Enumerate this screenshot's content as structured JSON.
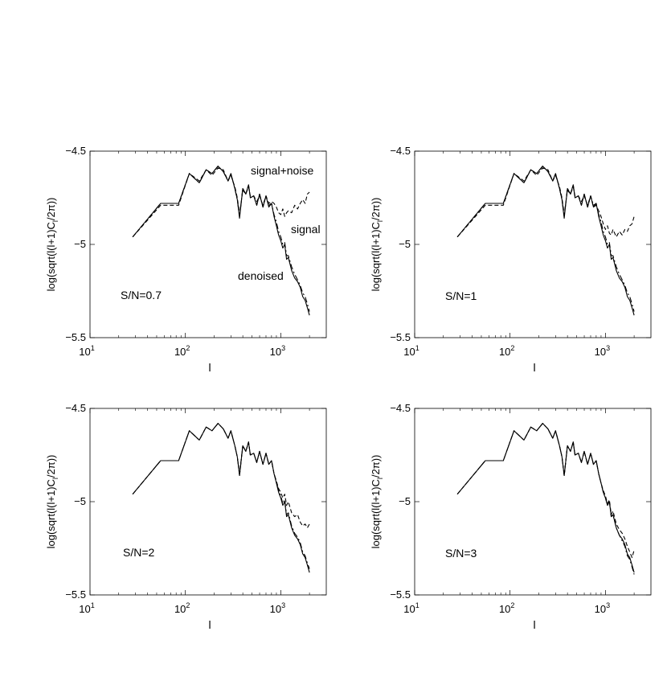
{
  "figure": {
    "layout": "2x2 grid of log-x line plots",
    "line_styles": {
      "signal": "solid",
      "signal+noise": "dashed",
      "denoised": "dash-dot"
    },
    "color": "#000000"
  },
  "chart_data": [
    {
      "type": "line",
      "panel": "top-left",
      "annotation": "S/N=0.7",
      "curve_labels": [
        "signal+noise",
        "signal",
        "denoised"
      ],
      "xlabel": "l",
      "ylabel": "log(sqrt(l(l+1)C_l/2π))",
      "xscale": "log",
      "xlim": [
        10,
        3000
      ],
      "ylim": [
        -5.5,
        -4.5
      ],
      "xticks": [
        10,
        100,
        1000
      ],
      "xtick_labels": [
        "10^1",
        "10^2",
        "10^3"
      ],
      "yticks": [
        -5.5,
        -5,
        -4.5
      ],
      "ytick_labels": [
        "-5.5",
        "-5",
        "-4.5"
      ],
      "grid": false,
      "x": [
        28,
        55,
        85,
        110,
        140,
        165,
        190,
        220,
        250,
        280,
        300,
        330,
        350,
        370,
        400,
        430,
        460,
        480,
        520,
        560,
        600,
        650,
        700,
        750,
        800,
        850,
        900,
        950,
        1000,
        1050,
        1100,
        1150,
        1200,
        1300,
        1400,
        1500,
        1600,
        1700,
        1800,
        1900,
        2000
      ],
      "series": [
        {
          "name": "signal",
          "values": [
            -4.96,
            -4.78,
            -4.78,
            -4.62,
            -4.67,
            -4.6,
            -4.62,
            -4.58,
            -4.61,
            -4.66,
            -4.62,
            -4.7,
            -4.76,
            -4.86,
            -4.7,
            -4.73,
            -4.68,
            -4.75,
            -4.74,
            -4.79,
            -4.73,
            -4.8,
            -4.74,
            -4.8,
            -4.78,
            -4.85,
            -4.9,
            -4.95,
            -4.98,
            -5.02,
            -5.0,
            -5.08,
            -5.07,
            -5.14,
            -5.18,
            -5.2,
            -5.23,
            -5.28,
            -5.3,
            -5.34,
            -5.38
          ]
        },
        {
          "name": "signal+noise",
          "values": [
            -4.96,
            -4.79,
            -4.79,
            -4.62,
            -4.66,
            -4.6,
            -4.63,
            -4.59,
            -4.6,
            -4.66,
            -4.63,
            -4.69,
            -4.75,
            -4.84,
            -4.71,
            -4.73,
            -4.69,
            -4.74,
            -4.74,
            -4.77,
            -4.74,
            -4.79,
            -4.74,
            -4.78,
            -4.77,
            -4.78,
            -4.8,
            -4.83,
            -4.84,
            -4.81,
            -4.85,
            -4.83,
            -4.82,
            -4.83,
            -4.79,
            -4.81,
            -4.78,
            -4.76,
            -4.78,
            -4.73,
            -4.72
          ]
        },
        {
          "name": "denoised",
          "values": [
            -4.96,
            -4.78,
            -4.78,
            -4.62,
            -4.67,
            -4.6,
            -4.62,
            -4.58,
            -4.61,
            -4.66,
            -4.62,
            -4.7,
            -4.76,
            -4.85,
            -4.7,
            -4.73,
            -4.68,
            -4.75,
            -4.74,
            -4.79,
            -4.73,
            -4.8,
            -4.74,
            -4.79,
            -4.78,
            -4.84,
            -4.88,
            -4.93,
            -4.96,
            -5.0,
            -4.99,
            -5.06,
            -5.06,
            -5.12,
            -5.16,
            -5.19,
            -5.22,
            -5.26,
            -5.28,
            -5.32,
            -5.36
          ]
        }
      ]
    },
    {
      "type": "line",
      "panel": "top-right",
      "annotation": "S/N=1",
      "curve_labels": [],
      "xlabel": "l",
      "ylabel": "log(sqrt(l(l+1)C_l/2π))",
      "xscale": "log",
      "xlim": [
        10,
        3000
      ],
      "ylim": [
        -5.5,
        -4.5
      ],
      "xticks": [
        10,
        100,
        1000
      ],
      "xtick_labels": [
        "10^1",
        "10^2",
        "10^3"
      ],
      "yticks": [
        -5.5,
        -5,
        -4.5
      ],
      "ytick_labels": [
        "-5.5",
        "-5",
        "-4.5"
      ],
      "grid": false,
      "x": [
        28,
        55,
        85,
        110,
        140,
        165,
        190,
        220,
        250,
        280,
        300,
        330,
        350,
        370,
        400,
        430,
        460,
        480,
        520,
        560,
        600,
        650,
        700,
        750,
        800,
        850,
        900,
        950,
        1000,
        1050,
        1100,
        1150,
        1200,
        1300,
        1400,
        1500,
        1600,
        1700,
        1800,
        1900,
        2000
      ],
      "series": [
        {
          "name": "signal",
          "values": [
            -4.96,
            -4.78,
            -4.78,
            -4.62,
            -4.67,
            -4.6,
            -4.62,
            -4.58,
            -4.61,
            -4.66,
            -4.62,
            -4.7,
            -4.76,
            -4.86,
            -4.7,
            -4.73,
            -4.68,
            -4.75,
            -4.74,
            -4.79,
            -4.73,
            -4.8,
            -4.74,
            -4.8,
            -4.78,
            -4.85,
            -4.9,
            -4.95,
            -4.98,
            -5.02,
            -5.0,
            -5.08,
            -5.07,
            -5.14,
            -5.18,
            -5.2,
            -5.23,
            -5.28,
            -5.3,
            -5.34,
            -5.38
          ]
        },
        {
          "name": "signal+noise",
          "values": [
            -4.96,
            -4.79,
            -4.79,
            -4.62,
            -4.66,
            -4.6,
            -4.63,
            -4.59,
            -4.6,
            -4.66,
            -4.63,
            -4.69,
            -4.75,
            -4.84,
            -4.71,
            -4.73,
            -4.69,
            -4.74,
            -4.74,
            -4.77,
            -4.74,
            -4.79,
            -4.74,
            -4.8,
            -4.79,
            -4.82,
            -4.85,
            -4.89,
            -4.92,
            -4.9,
            -4.94,
            -4.95,
            -4.92,
            -4.96,
            -4.93,
            -4.95,
            -4.92,
            -4.93,
            -4.9,
            -4.89,
            -4.85
          ]
        },
        {
          "name": "denoised",
          "values": [
            -4.96,
            -4.78,
            -4.78,
            -4.62,
            -4.67,
            -4.6,
            -4.62,
            -4.58,
            -4.61,
            -4.66,
            -4.62,
            -4.7,
            -4.76,
            -4.85,
            -4.7,
            -4.73,
            -4.68,
            -4.75,
            -4.74,
            -4.79,
            -4.73,
            -4.8,
            -4.74,
            -4.79,
            -4.78,
            -4.84,
            -4.88,
            -4.93,
            -4.96,
            -5.0,
            -4.99,
            -5.06,
            -5.06,
            -5.12,
            -5.16,
            -5.19,
            -5.22,
            -5.26,
            -5.28,
            -5.32,
            -5.36
          ]
        }
      ]
    },
    {
      "type": "line",
      "panel": "bottom-left",
      "annotation": "S/N=2",
      "curve_labels": [],
      "xlabel": "l",
      "ylabel": "log(sqrt(l(l+1)C_l/2π))",
      "xscale": "log",
      "xlim": [
        10,
        3000
      ],
      "ylim": [
        -5.5,
        -4.5
      ],
      "xticks": [
        10,
        100,
        1000
      ],
      "xtick_labels": [
        "10^1",
        "10^2",
        "10^3"
      ],
      "yticks": [
        -5.5,
        -5,
        -4.5
      ],
      "ytick_labels": [
        "-5.5",
        "-5",
        "-4.5"
      ],
      "grid": false,
      "x": [
        28,
        55,
        85,
        110,
        140,
        165,
        190,
        220,
        250,
        280,
        300,
        330,
        350,
        370,
        400,
        430,
        460,
        480,
        520,
        560,
        600,
        650,
        700,
        750,
        800,
        850,
        900,
        950,
        1000,
        1050,
        1100,
        1150,
        1200,
        1300,
        1400,
        1500,
        1600,
        1700,
        1800,
        1900,
        2000
      ],
      "series": [
        {
          "name": "signal",
          "values": [
            -4.96,
            -4.78,
            -4.78,
            -4.62,
            -4.67,
            -4.6,
            -4.62,
            -4.58,
            -4.61,
            -4.66,
            -4.62,
            -4.7,
            -4.76,
            -4.86,
            -4.7,
            -4.73,
            -4.68,
            -4.75,
            -4.74,
            -4.79,
            -4.73,
            -4.8,
            -4.74,
            -4.8,
            -4.78,
            -4.85,
            -4.9,
            -4.95,
            -4.98,
            -5.02,
            -5.0,
            -5.08,
            -5.07,
            -5.14,
            -5.18,
            -5.2,
            -5.23,
            -5.28,
            -5.3,
            -5.34,
            -5.38
          ]
        },
        {
          "name": "signal+noise",
          "values": [
            -4.96,
            -4.78,
            -4.78,
            -4.62,
            -4.67,
            -4.6,
            -4.62,
            -4.58,
            -4.61,
            -4.66,
            -4.62,
            -4.7,
            -4.76,
            -4.85,
            -4.7,
            -4.73,
            -4.68,
            -4.75,
            -4.74,
            -4.79,
            -4.73,
            -4.8,
            -4.74,
            -4.8,
            -4.78,
            -4.85,
            -4.89,
            -4.93,
            -4.95,
            -4.98,
            -4.96,
            -5.02,
            -5.0,
            -5.06,
            -5.08,
            -5.07,
            -5.11,
            -5.13,
            -5.12,
            -5.14,
            -5.12
          ]
        },
        {
          "name": "denoised",
          "values": [
            -4.96,
            -4.78,
            -4.78,
            -4.62,
            -4.67,
            -4.6,
            -4.62,
            -4.58,
            -4.61,
            -4.66,
            -4.62,
            -4.7,
            -4.76,
            -4.86,
            -4.7,
            -4.73,
            -4.68,
            -4.75,
            -4.74,
            -4.79,
            -4.73,
            -4.8,
            -4.74,
            -4.8,
            -4.78,
            -4.85,
            -4.89,
            -4.94,
            -4.97,
            -5.01,
            -4.99,
            -5.07,
            -5.06,
            -5.13,
            -5.17,
            -5.19,
            -5.22,
            -5.27,
            -5.29,
            -5.33,
            -5.36
          ]
        }
      ]
    },
    {
      "type": "line",
      "panel": "bottom-right",
      "annotation": "S/N=3",
      "curve_labels": [],
      "xlabel": "l",
      "ylabel": "log(sqrt(l(l+1)C_l/2π))",
      "xscale": "log",
      "xlim": [
        10,
        3000
      ],
      "ylim": [
        -5.5,
        -4.5
      ],
      "xticks": [
        10,
        100,
        1000
      ],
      "xtick_labels": [
        "10^1",
        "10^2",
        "10^3"
      ],
      "yticks": [
        -5.5,
        -5,
        -4.5
      ],
      "ytick_labels": [
        "-5.5",
        "-5",
        "-4.5"
      ],
      "grid": false,
      "x": [
        28,
        55,
        85,
        110,
        140,
        165,
        190,
        220,
        250,
        280,
        300,
        330,
        350,
        370,
        400,
        430,
        460,
        480,
        520,
        560,
        600,
        650,
        700,
        750,
        800,
        850,
        900,
        950,
        1000,
        1050,
        1100,
        1150,
        1200,
        1300,
        1400,
        1500,
        1600,
        1700,
        1800,
        1900,
        2000
      ],
      "series": [
        {
          "name": "signal",
          "values": [
            -4.96,
            -4.78,
            -4.78,
            -4.62,
            -4.67,
            -4.6,
            -4.62,
            -4.58,
            -4.61,
            -4.66,
            -4.62,
            -4.7,
            -4.76,
            -4.86,
            -4.7,
            -4.73,
            -4.68,
            -4.75,
            -4.74,
            -4.79,
            -4.73,
            -4.8,
            -4.74,
            -4.8,
            -4.78,
            -4.85,
            -4.9,
            -4.95,
            -4.98,
            -5.02,
            -5.0,
            -5.08,
            -5.07,
            -5.14,
            -5.18,
            -5.2,
            -5.23,
            -5.28,
            -5.3,
            -5.34,
            -5.38
          ]
        },
        {
          "name": "signal+noise",
          "values": [
            -4.96,
            -4.78,
            -4.78,
            -4.62,
            -4.67,
            -4.6,
            -4.62,
            -4.58,
            -4.61,
            -4.66,
            -4.62,
            -4.7,
            -4.76,
            -4.86,
            -4.7,
            -4.73,
            -4.68,
            -4.75,
            -4.74,
            -4.79,
            -4.73,
            -4.8,
            -4.74,
            -4.8,
            -4.78,
            -4.85,
            -4.9,
            -4.94,
            -4.97,
            -5.01,
            -4.99,
            -5.07,
            -5.05,
            -5.12,
            -5.15,
            -5.17,
            -5.2,
            -5.24,
            -5.27,
            -5.3,
            -5.26
          ]
        },
        {
          "name": "denoised",
          "values": [
            -4.96,
            -4.78,
            -4.78,
            -4.62,
            -4.67,
            -4.6,
            -4.62,
            -4.58,
            -4.61,
            -4.66,
            -4.62,
            -4.7,
            -4.76,
            -4.86,
            -4.7,
            -4.73,
            -4.68,
            -4.75,
            -4.74,
            -4.79,
            -4.73,
            -4.8,
            -4.74,
            -4.8,
            -4.78,
            -4.85,
            -4.9,
            -4.95,
            -4.98,
            -5.02,
            -5.0,
            -5.08,
            -5.07,
            -5.14,
            -5.18,
            -5.21,
            -5.24,
            -5.29,
            -5.31,
            -5.35,
            -5.39
          ]
        }
      ]
    }
  ]
}
